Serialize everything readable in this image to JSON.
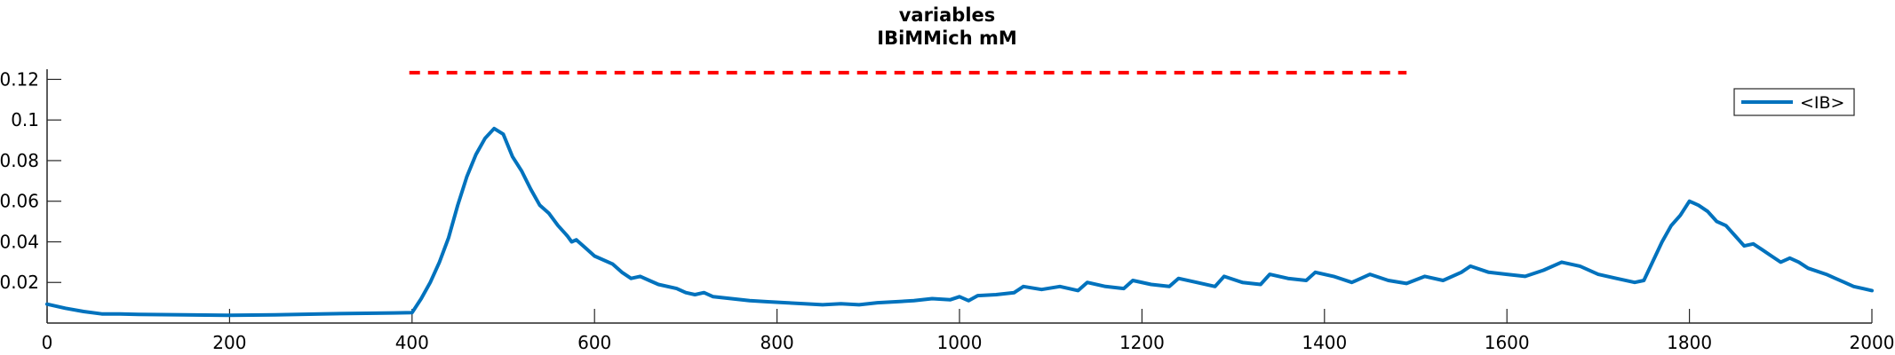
{
  "chart_data": {
    "type": "line",
    "title": "variables",
    "subtitle": "IBiMMich mM",
    "xlabel": "",
    "ylabel": "",
    "xlim": [
      0,
      2000
    ],
    "ylim": [
      0,
      0.125
    ],
    "x_ticks": [
      0,
      200,
      400,
      600,
      800,
      1000,
      1200,
      1400,
      1600,
      1800,
      2000
    ],
    "x_tick_labels": [
      "0",
      "200",
      "400",
      "600",
      "800",
      "1000",
      "1200",
      "1400",
      "1600",
      "1800",
      "2000"
    ],
    "y_ticks": [
      0.02,
      0.04,
      0.06,
      0.08,
      0.1,
      0.12
    ],
    "y_tick_labels": [
      "0.02",
      "0.04",
      "0.06",
      "0.08",
      "0.1",
      "0.12"
    ],
    "grid": false,
    "legend": {
      "position": "top-right",
      "entries": [
        "<IB>"
      ]
    },
    "reference_line": {
      "style": "dashed",
      "color": "#ff0000",
      "y": 0.1233,
      "x_start": 397,
      "x_end": 1490
    },
    "colors": {
      "series": "#0072bd",
      "reference": "#ff0000",
      "axis": "#262626"
    },
    "series": [
      {
        "name": "<IB>",
        "color": "#0072bd",
        "points": [
          [
            0,
            0.0093
          ],
          [
            20,
            0.0073
          ],
          [
            40,
            0.0057
          ],
          [
            60,
            0.0045
          ],
          [
            80,
            0.0045
          ],
          [
            100,
            0.0043
          ],
          [
            150,
            0.004
          ],
          [
            200,
            0.0038
          ],
          [
            250,
            0.004
          ],
          [
            300,
            0.0045
          ],
          [
            350,
            0.0048
          ],
          [
            380,
            0.005
          ],
          [
            400,
            0.0051
          ],
          [
            410,
            0.012
          ],
          [
            420,
            0.02
          ],
          [
            430,
            0.03
          ],
          [
            440,
            0.042
          ],
          [
            450,
            0.058
          ],
          [
            460,
            0.072
          ],
          [
            470,
            0.083
          ],
          [
            480,
            0.091
          ],
          [
            490,
            0.0958
          ],
          [
            500,
            0.093
          ],
          [
            510,
            0.082
          ],
          [
            520,
            0.075
          ],
          [
            530,
            0.066
          ],
          [
            540,
            0.058
          ],
          [
            550,
            0.054
          ],
          [
            560,
            0.048
          ],
          [
            570,
            0.043
          ],
          [
            575,
            0.04
          ],
          [
            580,
            0.041
          ],
          [
            590,
            0.037
          ],
          [
            600,
            0.033
          ],
          [
            620,
            0.029
          ],
          [
            630,
            0.025
          ],
          [
            640,
            0.022
          ],
          [
            650,
            0.023
          ],
          [
            660,
            0.021
          ],
          [
            670,
            0.019
          ],
          [
            690,
            0.017
          ],
          [
            700,
            0.015
          ],
          [
            710,
            0.014
          ],
          [
            720,
            0.015
          ],
          [
            730,
            0.013
          ],
          [
            750,
            0.012
          ],
          [
            770,
            0.011
          ],
          [
            790,
            0.0105
          ],
          [
            810,
            0.01
          ],
          [
            830,
            0.0095
          ],
          [
            850,
            0.009
          ],
          [
            870,
            0.0095
          ],
          [
            890,
            0.009
          ],
          [
            910,
            0.01
          ],
          [
            930,
            0.0105
          ],
          [
            950,
            0.011
          ],
          [
            970,
            0.012
          ],
          [
            990,
            0.0115
          ],
          [
            1000,
            0.013
          ],
          [
            1010,
            0.011
          ],
          [
            1020,
            0.0135
          ],
          [
            1040,
            0.014
          ],
          [
            1060,
            0.015
          ],
          [
            1070,
            0.018
          ],
          [
            1090,
            0.0165
          ],
          [
            1110,
            0.018
          ],
          [
            1130,
            0.016
          ],
          [
            1140,
            0.02
          ],
          [
            1160,
            0.018
          ],
          [
            1180,
            0.017
          ],
          [
            1190,
            0.021
          ],
          [
            1210,
            0.019
          ],
          [
            1230,
            0.018
          ],
          [
            1240,
            0.022
          ],
          [
            1260,
            0.02
          ],
          [
            1280,
            0.018
          ],
          [
            1290,
            0.023
          ],
          [
            1310,
            0.02
          ],
          [
            1330,
            0.019
          ],
          [
            1340,
            0.024
          ],
          [
            1360,
            0.022
          ],
          [
            1380,
            0.021
          ],
          [
            1390,
            0.025
          ],
          [
            1410,
            0.023
          ],
          [
            1430,
            0.02
          ],
          [
            1450,
            0.024
          ],
          [
            1470,
            0.021
          ],
          [
            1490,
            0.0195
          ],
          [
            1510,
            0.023
          ],
          [
            1530,
            0.021
          ],
          [
            1550,
            0.025
          ],
          [
            1560,
            0.028
          ],
          [
            1580,
            0.025
          ],
          [
            1600,
            0.024
          ],
          [
            1620,
            0.023
          ],
          [
            1640,
            0.026
          ],
          [
            1660,
            0.03
          ],
          [
            1680,
            0.028
          ],
          [
            1700,
            0.024
          ],
          [
            1720,
            0.022
          ],
          [
            1740,
            0.02
          ],
          [
            1750,
            0.021
          ],
          [
            1770,
            0.04
          ],
          [
            1780,
            0.048
          ],
          [
            1790,
            0.053
          ],
          [
            1800,
            0.06
          ],
          [
            1810,
            0.058
          ],
          [
            1820,
            0.055
          ],
          [
            1830,
            0.05
          ],
          [
            1840,
            0.048
          ],
          [
            1850,
            0.043
          ],
          [
            1860,
            0.038
          ],
          [
            1870,
            0.039
          ],
          [
            1880,
            0.036
          ],
          [
            1890,
            0.033
          ],
          [
            1900,
            0.03
          ],
          [
            1910,
            0.032
          ],
          [
            1920,
            0.03
          ],
          [
            1930,
            0.027
          ],
          [
            1950,
            0.024
          ],
          [
            1960,
            0.022
          ],
          [
            1970,
            0.02
          ],
          [
            1980,
            0.018
          ],
          [
            1990,
            0.017
          ],
          [
            2000,
            0.016
          ]
        ]
      }
    ]
  }
}
